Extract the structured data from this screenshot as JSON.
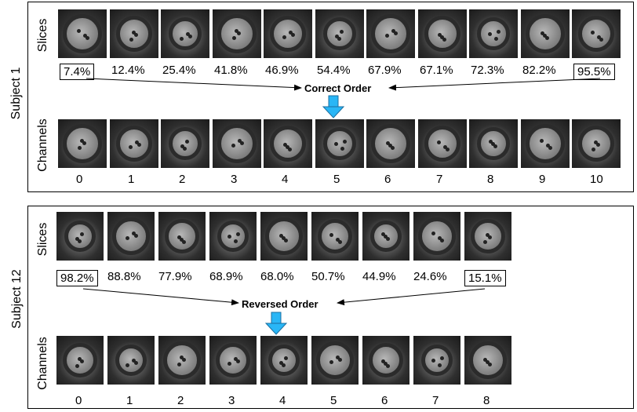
{
  "subject1": {
    "title": "Subject 1",
    "slices_label": "Slices",
    "channels_label": "Channels",
    "percentages": [
      "7.4%",
      "12.4%",
      "25.4%",
      "41.8%",
      "46.9%",
      "54.4%",
      "67.9%",
      "67.1%",
      "72.3%",
      "82.2%",
      "95.5%"
    ],
    "order_label": "Correct Order",
    "channel_indices": [
      "0",
      "1",
      "2",
      "3",
      "4",
      "5",
      "6",
      "7",
      "8",
      "9",
      "10"
    ]
  },
  "subject12": {
    "title": "Subject 12",
    "slices_label": "Slices",
    "channels_label": "Channels",
    "percentages": [
      "98.2%",
      "88.8%",
      "77.9%",
      "68.9%",
      "68.0%",
      "50.7%",
      "44.9%",
      "24.6%",
      "15.1%"
    ],
    "order_label": "Reversed Order",
    "channel_indices": [
      "0",
      "1",
      "2",
      "3",
      "4",
      "5",
      "6",
      "7",
      "8"
    ]
  },
  "colors": {
    "down_arrow": "#29b6f6",
    "arrow_stroke": "#000000",
    "thumbnail": "#3a3a3a"
  }
}
